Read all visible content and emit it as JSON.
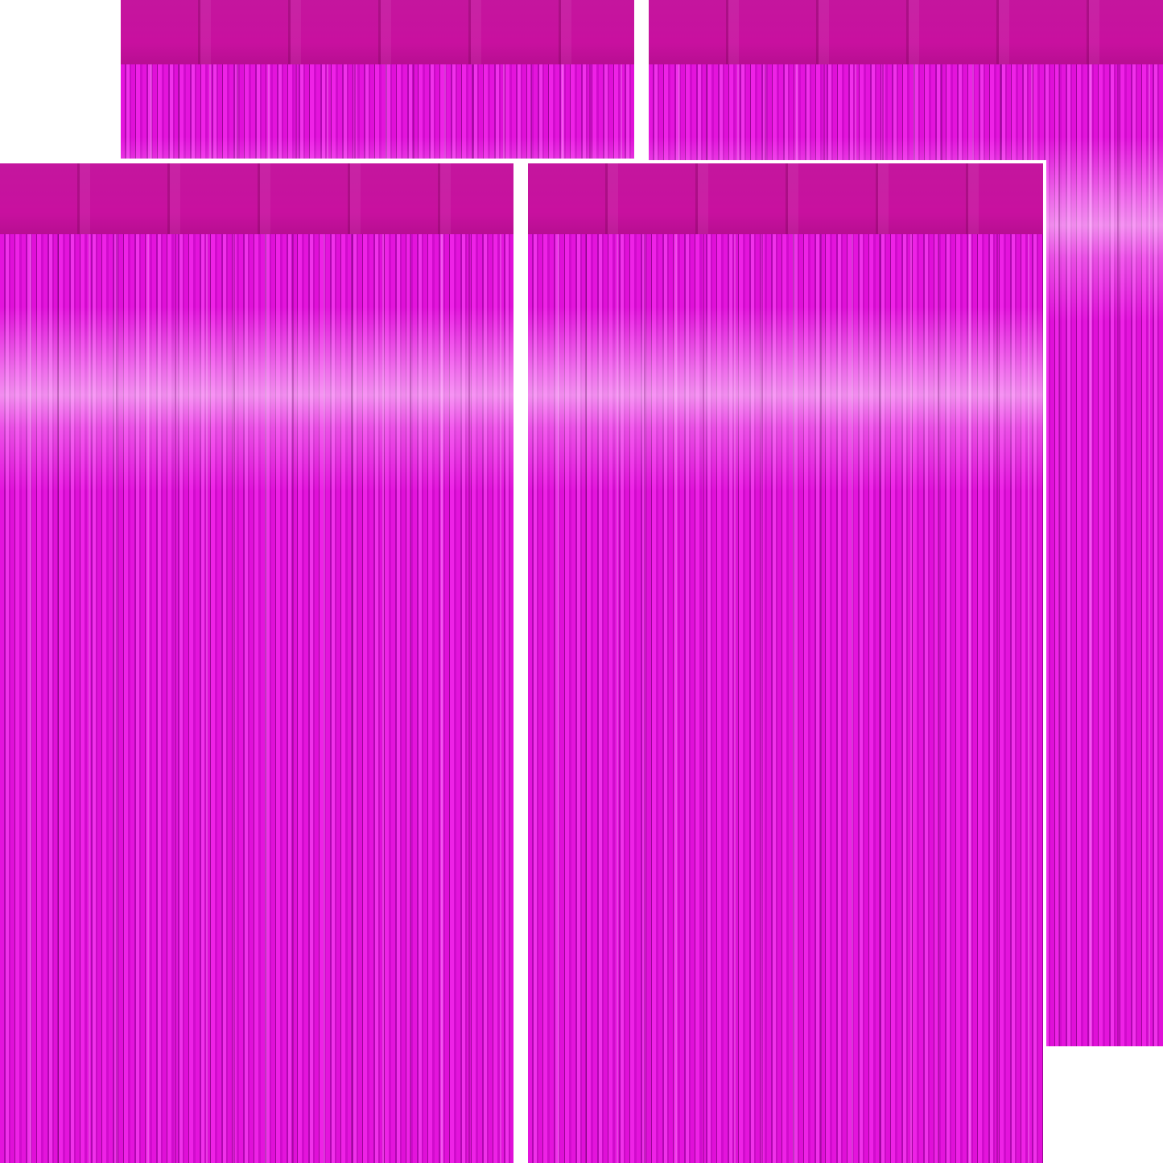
{
  "image": {
    "subject": "foil-fringe-curtains",
    "count": 4,
    "colors": {
      "header_band": "#c4169e",
      "fringe": "#e010d8",
      "fringe_shadow": "#9a0696",
      "background": "#ffffff"
    }
  }
}
